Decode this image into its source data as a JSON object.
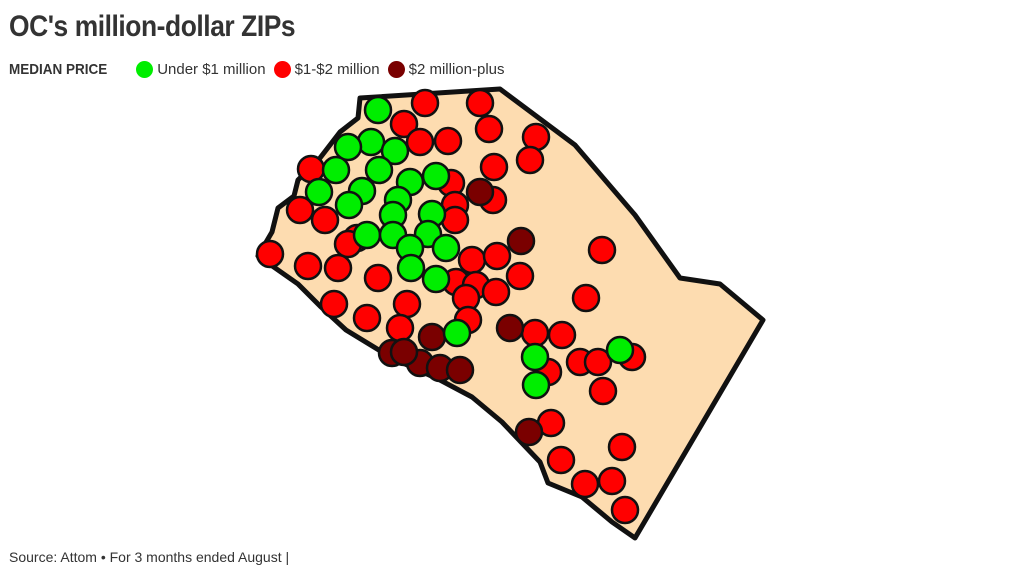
{
  "title": "OC's million-dollar ZIPs",
  "legend": {
    "label": "MEDIAN PRICE",
    "items": [
      {
        "label": "Under $1 million",
        "color": "#00ee00",
        "category": "under1"
      },
      {
        "label": "$1-$2 million",
        "color": "#ff0000",
        "category": "1to2"
      },
      {
        "label": "$2 million-plus",
        "color": "#7a0000",
        "category": "over2"
      }
    ]
  },
  "map": {
    "fill": "#fddcb0",
    "stroke": "#111111",
    "region": "Orange County"
  },
  "source": "Source: Attom • For 3 months ended August |"
}
